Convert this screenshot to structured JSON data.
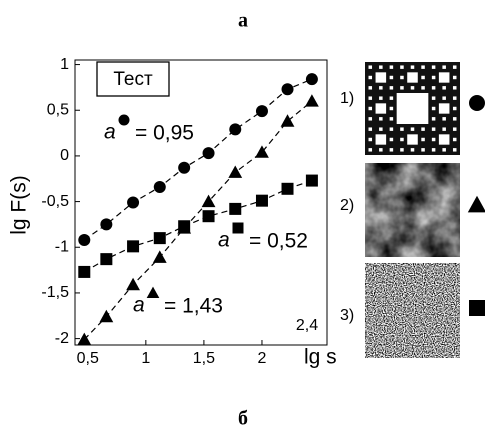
{
  "chart_data": {
    "type": "line",
    "panel_label": "а",
    "legend_title": "Тест",
    "x_label": "lg s",
    "y_label": "lg F(s)",
    "slope_symbol": "a",
    "xlim": [
      0.39,
      2.56
    ],
    "ylim": [
      -2.07,
      1.05
    ],
    "xticks": [
      {
        "value": 0.5,
        "label": "0,5"
      },
      1,
      {
        "value": 1.5,
        "label": "1,5"
      },
      2
    ],
    "yticks": [
      1,
      {
        "value": 0.5,
        "label": "0,5"
      },
      0,
      {
        "value": -0.5,
        "label": "-0,5"
      },
      -1,
      {
        "value": -1.5,
        "label": "-1,5"
      },
      -2
    ],
    "annotation": "2,4",
    "x": [
      0.47,
      0.66,
      0.89,
      1.12,
      1.33,
      1.54,
      1.77,
      2.0,
      2.22,
      2.43
    ],
    "series": [
      {
        "marker": "circle",
        "color": "#000000",
        "slope_label": "= 0,95",
        "sample_label": "1)",
        "values": [
          -0.92,
          -0.75,
          -0.51,
          -0.34,
          -0.13,
          0.03,
          0.29,
          0.49,
          0.73,
          0.84
        ]
      },
      {
        "marker": "triangle",
        "color": "#000000",
        "slope_label": "= 1,43",
        "sample_label": "2)",
        "values": [
          -2.01,
          -1.76,
          -1.41,
          -1.11,
          -0.79,
          -0.5,
          -0.18,
          0.04,
          0.38,
          0.6
        ]
      },
      {
        "marker": "square",
        "color": "#000000",
        "slope_label": "= 0,52",
        "sample_label": "3)",
        "values": [
          -1.27,
          -1.13,
          -0.99,
          -0.9,
          -0.77,
          -0.66,
          -0.58,
          -0.49,
          -0.36,
          -0.27
        ]
      }
    ]
  },
  "footer_label": "б"
}
